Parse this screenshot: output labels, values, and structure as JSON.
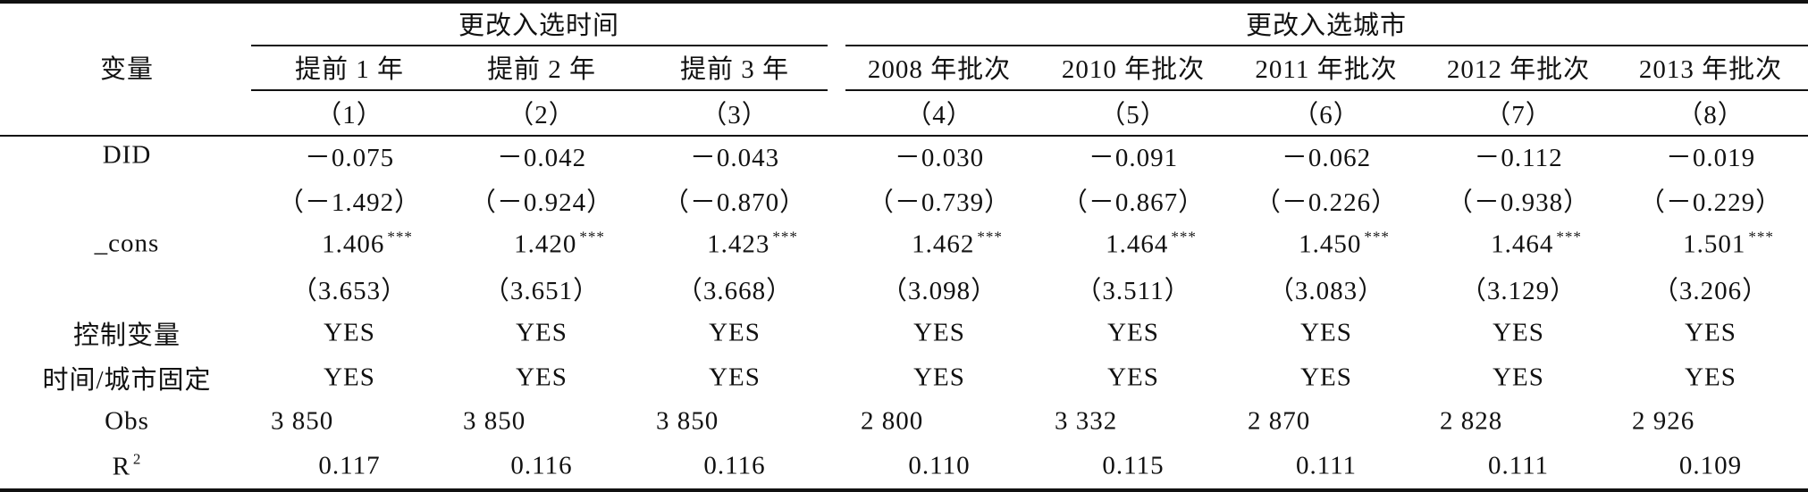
{
  "table": {
    "corner": "变量",
    "groups": [
      "更改入选时间",
      "更改入选城市"
    ],
    "columns": [
      "提前 1 年",
      "提前 2 年",
      "提前 3 年",
      "2008 年批次",
      "2010 年批次",
      "2011 年批次",
      "2012 年批次",
      "2013 年批次"
    ],
    "column_numbers": [
      "（1）",
      "（2）",
      "（3）",
      "（4）",
      "（5）",
      "（6）",
      "（7）",
      "（8）"
    ],
    "rows": [
      {
        "label": "DID",
        "cells": [
          "－0.075",
          "－0.042",
          "－0.043",
          "－0.030",
          "－0.091",
          "－0.062",
          "－0.112",
          "－0.019"
        ]
      },
      {
        "label": null,
        "cells": [
          "（－1.492）",
          "（－0.924）",
          "（－0.870）",
          "（－0.739）",
          "（－0.867）",
          "（－0.226）",
          "（－0.938）",
          "（－0.229）"
        ]
      },
      {
        "label": "_cons",
        "cells": [
          "1.406",
          "1.420",
          "1.423",
          "1.462",
          "1.464",
          "1.450",
          "1.464",
          "1.501"
        ],
        "cells_sup": [
          "***",
          "***",
          "***",
          "***",
          "***",
          "***",
          "***",
          "***"
        ]
      },
      {
        "label": null,
        "cells": [
          "（3.653）",
          "（3.651）",
          "（3.668）",
          "（3.098）",
          "（3.511）",
          "（3.083）",
          "（3.129）",
          "（3.206）"
        ]
      },
      {
        "label": "控制变量",
        "cells": [
          "YES",
          "YES",
          "YES",
          "YES",
          "YES",
          "YES",
          "YES",
          "YES"
        ]
      },
      {
        "label": "时间/城市固定",
        "cells": [
          "YES",
          "YES",
          "YES",
          "YES",
          "YES",
          "YES",
          "YES",
          "YES"
        ]
      },
      {
        "label": "Obs",
        "cells": [
          "3 850",
          "3 850",
          "3 850",
          "2 800",
          "3 332",
          "2 870",
          "2 828",
          "2 926"
        ]
      },
      {
        "label": "R",
        "label_sup": "2",
        "cells": [
          "0.117",
          "0.116",
          "0.116",
          "0.110",
          "0.115",
          "0.111",
          "0.111",
          "0.109"
        ]
      }
    ]
  }
}
